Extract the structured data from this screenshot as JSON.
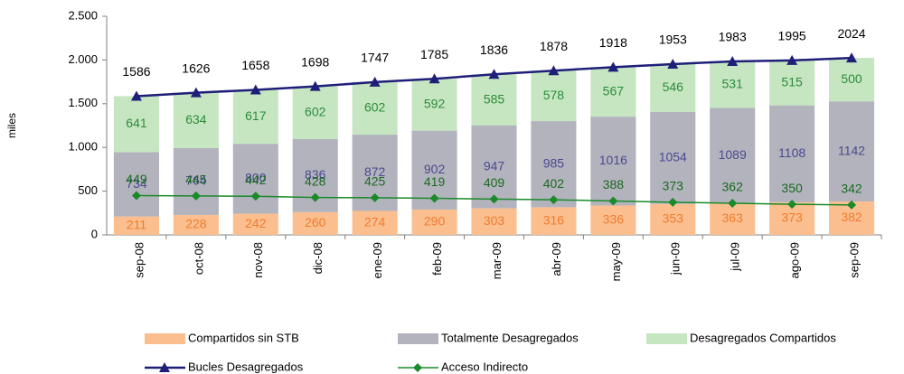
{
  "chart_data": {
    "type": "stacked-bar-line",
    "y_label": "miles",
    "categories": [
      "sep-08",
      "oct-08",
      "nov-08",
      "dic-08",
      "ene-09",
      "feb-09",
      "mar-09",
      "abr-09",
      "may-09",
      "jun-09",
      "jul-09",
      "ago-09",
      "sep-09"
    ],
    "ylim": [
      0,
      2500
    ],
    "yticks": [
      0,
      500,
      {
        "value": 1000,
        "label": "1.000"
      },
      {
        "value": 1500,
        "label": "1.500"
      },
      {
        "value": 2000,
        "label": "2.000"
      },
      {
        "value": 2500,
        "label": "2.500"
      }
    ],
    "series": [
      {
        "name": "Compartidos sin STB",
        "kind": "bar",
        "color": "#fbbf8f",
        "label_color": "#f07b2f",
        "values": [
          211,
          228,
          242,
          260,
          274,
          290,
          303,
          316,
          336,
          353,
          363,
          373,
          382
        ]
      },
      {
        "name": "Totalmente Desagregados",
        "kind": "bar",
        "color": "#b3b3bd",
        "label_color": "#4a4a90",
        "values": [
          734,
          764,
          800,
          836,
          872,
          902,
          947,
          985,
          1016,
          1054,
          1089,
          1108,
          1142
        ]
      },
      {
        "name": "Desagregados Compartidos",
        "kind": "bar",
        "color": "#c5e6c1",
        "label_color": "#2e8b3c",
        "values": [
          641,
          634,
          617,
          602,
          602,
          592,
          585,
          578,
          567,
          546,
          531,
          515,
          500
        ]
      },
      {
        "name": "Bucles Desagregados",
        "kind": "line",
        "color": "#1f1f7a",
        "marker": "triangle",
        "values": [
          1586,
          1626,
          1658,
          1698,
          1747,
          1785,
          1836,
          1878,
          1918,
          1953,
          1983,
          1995,
          2024
        ]
      },
      {
        "name": "Acceso Indirecto",
        "kind": "line",
        "color": "#1a8a2a",
        "marker": "diamond",
        "values": [
          449,
          445,
          442,
          428,
          425,
          419,
          409,
          402,
          388,
          373,
          362,
          350,
          342
        ]
      }
    ]
  }
}
